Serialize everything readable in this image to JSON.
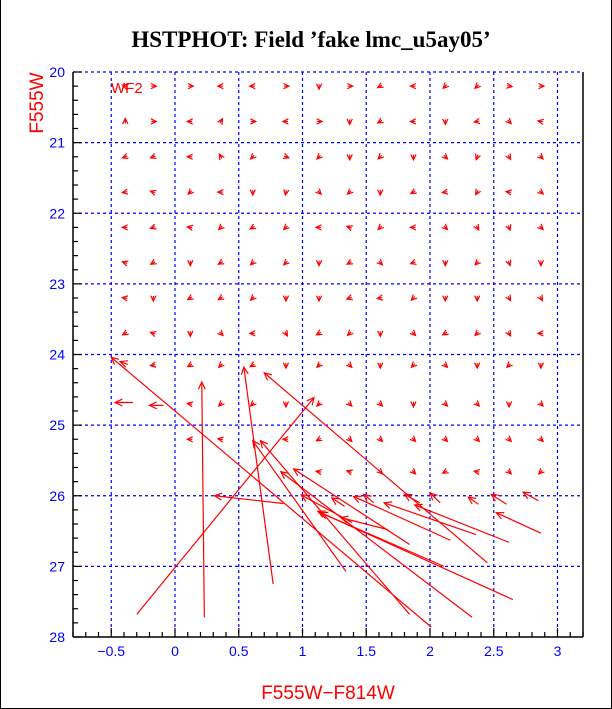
{
  "chart_data": {
    "type": "vector-field",
    "title": "HSTPHOT: Field ’fake lmc_u5ay05’",
    "xlabel": "F555W−F814W",
    "ylabel": "F555W",
    "panel_label": "WF2",
    "xlim": [
      -0.8,
      3.2
    ],
    "ylim": [
      28,
      20
    ],
    "y_inverted": true,
    "grid": true,
    "x_ticks": [
      -0.5,
      0,
      0.5,
      1,
      1.5,
      2,
      2.5,
      3
    ],
    "x_tick_labels": [
      "−0.5",
      "0",
      "0.5",
      "1",
      "1.5",
      "2",
      "2.5",
      "3"
    ],
    "y_ticks": [
      20,
      21,
      22,
      23,
      24,
      25,
      26,
      27,
      28
    ],
    "y_tick_labels": [
      "20",
      "21",
      "22",
      "23",
      "24",
      "25",
      "26",
      "27",
      "28"
    ],
    "colors": {
      "vectors": "#ff0000",
      "grid": "#0000ff",
      "ticks": "#0000ff",
      "axis": "#000000"
    },
    "long_vectors": [
      {
        "from": [
          2.01,
          27.86
        ],
        "to": [
          -0.5,
          24.04
        ]
      },
      {
        "from": [
          0.23,
          27.72
        ],
        "to": [
          0.21,
          24.39
        ]
      },
      {
        "from": [
          0.77,
          27.25
        ],
        "to": [
          0.54,
          24.18
        ]
      },
      {
        "from": [
          -0.3,
          27.68
        ],
        "to": [
          1.09,
          24.61
        ]
      },
      {
        "from": [
          2.45,
          26.95
        ],
        "to": [
          0.7,
          24.26
        ]
      },
      {
        "from": [
          0.85,
          26.11
        ],
        "to": [
          0.31,
          26.0
        ]
      },
      {
        "from": [
          1.34,
          27.07
        ],
        "to": [
          0.61,
          25.22
        ]
      },
      {
        "from": [
          1.84,
          27.68
        ],
        "to": [
          0.67,
          25.22
        ]
      },
      {
        "from": [
          1.84,
          26.69
        ],
        "to": [
          0.93,
          25.62
        ]
      },
      {
        "from": [
          2.33,
          27.72
        ],
        "to": [
          0.83,
          25.66
        ]
      },
      {
        "from": [
          2.65,
          27.47
        ],
        "to": [
          1.12,
          26.22
        ]
      },
      {
        "from": [
          2.11,
          27.0
        ],
        "to": [
          1.14,
          26.24
        ]
      },
      {
        "from": [
          1.67,
          26.48
        ],
        "to": [
          1.3,
          26.31
        ]
      },
      {
        "from": [
          2.16,
          26.63
        ],
        "to": [
          1.4,
          26.01
        ]
      },
      {
        "from": [
          2.36,
          26.55
        ],
        "to": [
          1.64,
          26.1
        ]
      },
      {
        "from": [
          2.62,
          26.66
        ],
        "to": [
          1.88,
          26.13
        ]
      },
      {
        "from": [
          2.87,
          26.53
        ],
        "to": [
          2.52,
          26.24
        ]
      },
      {
        "from": [
          1.39,
          26.38
        ],
        "to": [
          0.99,
          25.99
        ]
      },
      {
        "from": [
          1.33,
          26.15
        ],
        "to": [
          1.23,
          26.03
        ]
      },
      {
        "from": [
          2.08,
          26.1
        ],
        "to": [
          2.0,
          25.96
        ]
      },
      {
        "from": [
          2.38,
          26.12
        ],
        "to": [
          2.3,
          26.02
        ]
      },
      {
        "from": [
          2.6,
          26.12
        ],
        "to": [
          2.48,
          25.98
        ]
      },
      {
        "from": [
          2.85,
          26.07
        ],
        "to": [
          2.73,
          25.95
        ]
      },
      {
        "from": [
          1.92,
          26.1
        ],
        "to": [
          1.8,
          25.98
        ]
      },
      {
        "from": [
          1.56,
          26.1
        ],
        "to": [
          1.48,
          25.98
        ]
      },
      {
        "from": [
          -0.33,
          24.68
        ],
        "to": [
          -0.47,
          24.68
        ]
      },
      {
        "from": [
          -0.09,
          24.72
        ],
        "to": [
          -0.2,
          24.72
        ]
      },
      {
        "from": [
          -0.37,
          24.14
        ],
        "to": [
          -0.43,
          24.1
        ]
      }
    ],
    "small_vectors": {
      "columns": [
        -0.39,
        -0.17,
        0.12,
        0.36,
        0.61,
        0.87,
        1.13,
        1.37,
        1.61,
        1.87,
        2.12,
        2.37,
        2.62,
        2.87
      ],
      "rows": [
        {
          "y": 20.2,
          "angles": [
            200,
            0,
            0,
            180,
            180,
            0,
            90,
            0,
            150,
            180,
            135,
            135,
            10,
            0
          ]
        },
        {
          "y": 20.7,
          "angles": [
            270,
            0,
            180,
            300,
            0,
            180,
            0,
            90,
            150,
            180,
            90,
            170,
            45,
            190
          ]
        },
        {
          "y": 21.2,
          "angles": [
            160,
            160,
            180,
            240,
            135,
            20,
            135,
            90,
            135,
            90,
            45,
            110,
            60,
            45
          ]
        },
        {
          "y": 21.7,
          "angles": [
            170,
            200,
            135,
            180,
            90,
            100,
            45,
            135,
            90,
            150,
            170,
            120,
            190,
            40
          ]
        },
        {
          "y": 22.2,
          "angles": [
            180,
            160,
            190,
            135,
            150,
            135,
            180,
            200,
            135,
            180,
            45,
            60,
            70,
            45
          ]
        },
        {
          "y": 22.7,
          "angles": [
            200,
            150,
            90,
            150,
            135,
            135,
            90,
            150,
            45,
            160,
            90,
            135,
            70,
            90
          ]
        },
        {
          "y": 23.2,
          "angles": [
            190,
            90,
            150,
            150,
            135,
            90,
            90,
            160,
            170,
            135,
            90,
            90,
            60,
            60
          ]
        },
        {
          "y": 23.7,
          "angles": [
            150,
            200,
            90,
            45,
            180,
            60,
            150,
            135,
            90,
            45,
            150,
            135,
            60,
            180
          ]
        },
        {
          "y": 24.15,
          "angles": [
            null,
            170,
            150,
            135,
            150,
            90,
            135,
            45,
            90,
            135,
            45,
            90,
            135,
            90
          ]
        },
        {
          "y": 24.7,
          "angles": [
            null,
            null,
            190,
            135,
            135,
            90,
            135,
            45,
            45,
            90,
            45,
            45,
            90,
            45
          ]
        },
        {
          "y": 25.2,
          "angles": [
            null,
            null,
            180,
            190,
            null,
            180,
            150,
            45,
            45,
            45,
            45,
            45,
            45,
            45
          ]
        },
        {
          "y": 25.66,
          "angles": [
            null,
            null,
            null,
            null,
            null,
            null,
            190,
            200,
            45,
            45,
            150,
            190,
            45,
            135
          ]
        }
      ]
    }
  }
}
